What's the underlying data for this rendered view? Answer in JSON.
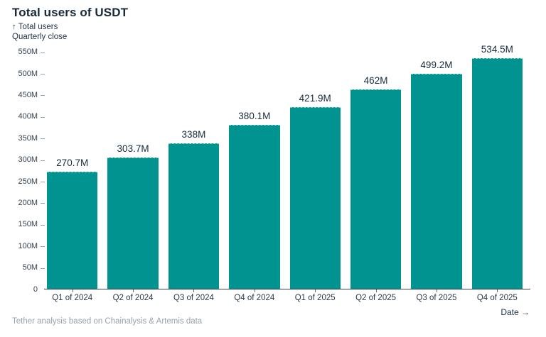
{
  "header": {
    "title": "Total users of USDT",
    "subtitle_line1": "↑ Total users",
    "subtitle_line2": "Quarterly close"
  },
  "chart_data": {
    "type": "bar",
    "title": "Total users of USDT",
    "subtitle": "Total users, quarterly close",
    "categories": [
      "Q1 of 2024",
      "Q2 of 2024",
      "Q3 of 2024",
      "Q4 of 2024",
      "Q1 of 2025",
      "Q2 of 2025",
      "Q3 of 2025",
      "Q4 of 2025"
    ],
    "values": [
      270.7,
      303.7,
      338,
      380.1,
      421.9,
      462,
      499.2,
      534.5
    ],
    "value_labels": [
      "270.7M",
      "303.7M",
      "338M",
      "380.1M",
      "421.9M",
      "462M",
      "499.2M",
      "534.5M"
    ],
    "value_unit": "M",
    "xlabel": "Date →",
    "ylabel": "Total users",
    "ylim": [
      0,
      550
    ],
    "yticks": [
      0,
      50,
      100,
      150,
      200,
      250,
      300,
      350,
      400,
      450,
      500,
      550
    ],
    "ytick_labels": [
      "0",
      "50M",
      "100M",
      "150M",
      "200M",
      "250M",
      "300M",
      "350M",
      "400M",
      "450M",
      "500M",
      "550M"
    ],
    "grid": false,
    "legend": "none",
    "bar_color": "#009390"
  },
  "footer": {
    "source": "Tether analysis based on Chainalysis & Artemis data"
  },
  "colors": {
    "bar": "#009390",
    "ink": "#182a3c",
    "axis_label": "#33424f",
    "axis_line": "#2e3e4e",
    "muted": "#99a1ac",
    "background": "#ffffff"
  }
}
